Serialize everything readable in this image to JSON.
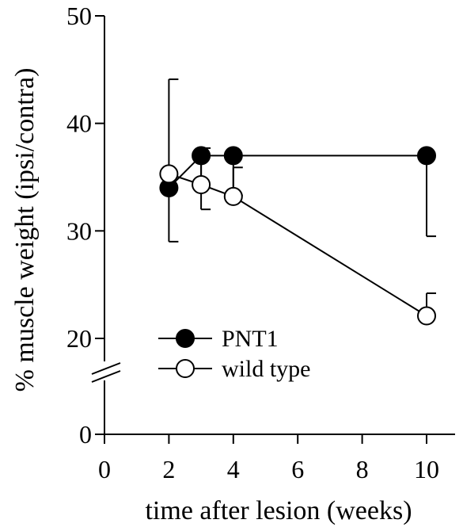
{
  "chart_data": {
    "type": "line",
    "xlabel": "time after lesion (weeks)",
    "ylabel": "% muscle weight (ipsi/contra)",
    "xlim": [
      0,
      11
    ],
    "x_ticks": [
      "0",
      "2",
      "4",
      "6",
      "8",
      "10"
    ],
    "y_ticks": [
      "0",
      "20",
      "30",
      "40",
      "50"
    ],
    "y_axis_break": "between 0 and 20",
    "grid": false,
    "legend_position": "bottom-left",
    "series": [
      {
        "name": "PNT1",
        "marker": "filled-circle",
        "x": [
          2,
          3,
          4,
          10
        ],
        "y": [
          34,
          37,
          37,
          37
        ],
        "error_bar_direction": "down",
        "error": [
          5,
          5,
          3.7,
          7.5
        ]
      },
      {
        "name": "wild type",
        "marker": "open-circle",
        "x": [
          2,
          3,
          4,
          10
        ],
        "y": [
          35.3,
          34.3,
          33.2,
          22.1
        ],
        "error_bar_direction": "up",
        "error": [
          8.8,
          3.4,
          2.7,
          2.1
        ]
      }
    ]
  }
}
